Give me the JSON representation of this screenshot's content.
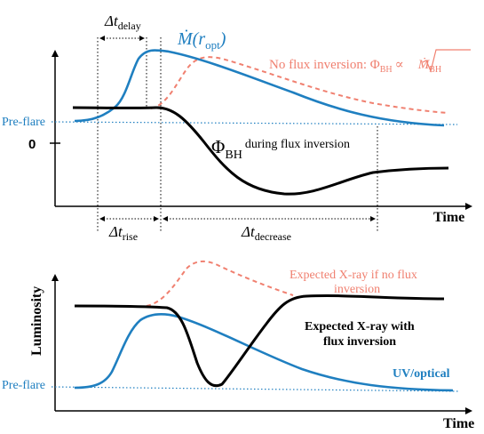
{
  "colors": {
    "blue": "#1f7fc0",
    "black": "#000000",
    "red": "#f08070"
  },
  "top_panel": {
    "mdot_label": "Ṁ(r",
    "mdot_sub": "opt",
    "mdot_close": ")",
    "no_flux_text": "No flux inversion: Φ",
    "no_flux_sub": "BH",
    "no_flux_prop": "∝",
    "no_flux_root": "Ṁ",
    "no_flux_root_sub": "BH",
    "preflare": "Pre-flare",
    "zero": "0",
    "phi_label": "Φ",
    "phi_sub": "BH",
    "phi_note": "during flux inversion",
    "x_axis": "Time",
    "delay_label": "Δt",
    "delay_sub": "delay",
    "rise_label": "Δt",
    "rise_sub": "rise",
    "decrease_label": "Δt",
    "decrease_sub": "decrease"
  },
  "bottom_panel": {
    "y_axis": "Luminosity",
    "x_axis": "Time",
    "preflare": "Pre-flare",
    "xray_no_flux_line1": "Expected X-ray if no flux",
    "xray_no_flux_line2": "inversion",
    "xray_flux_line1": "Expected X-ray with",
    "xray_flux_line2": "flux inversion",
    "uv_label": "UV/optical"
  }
}
